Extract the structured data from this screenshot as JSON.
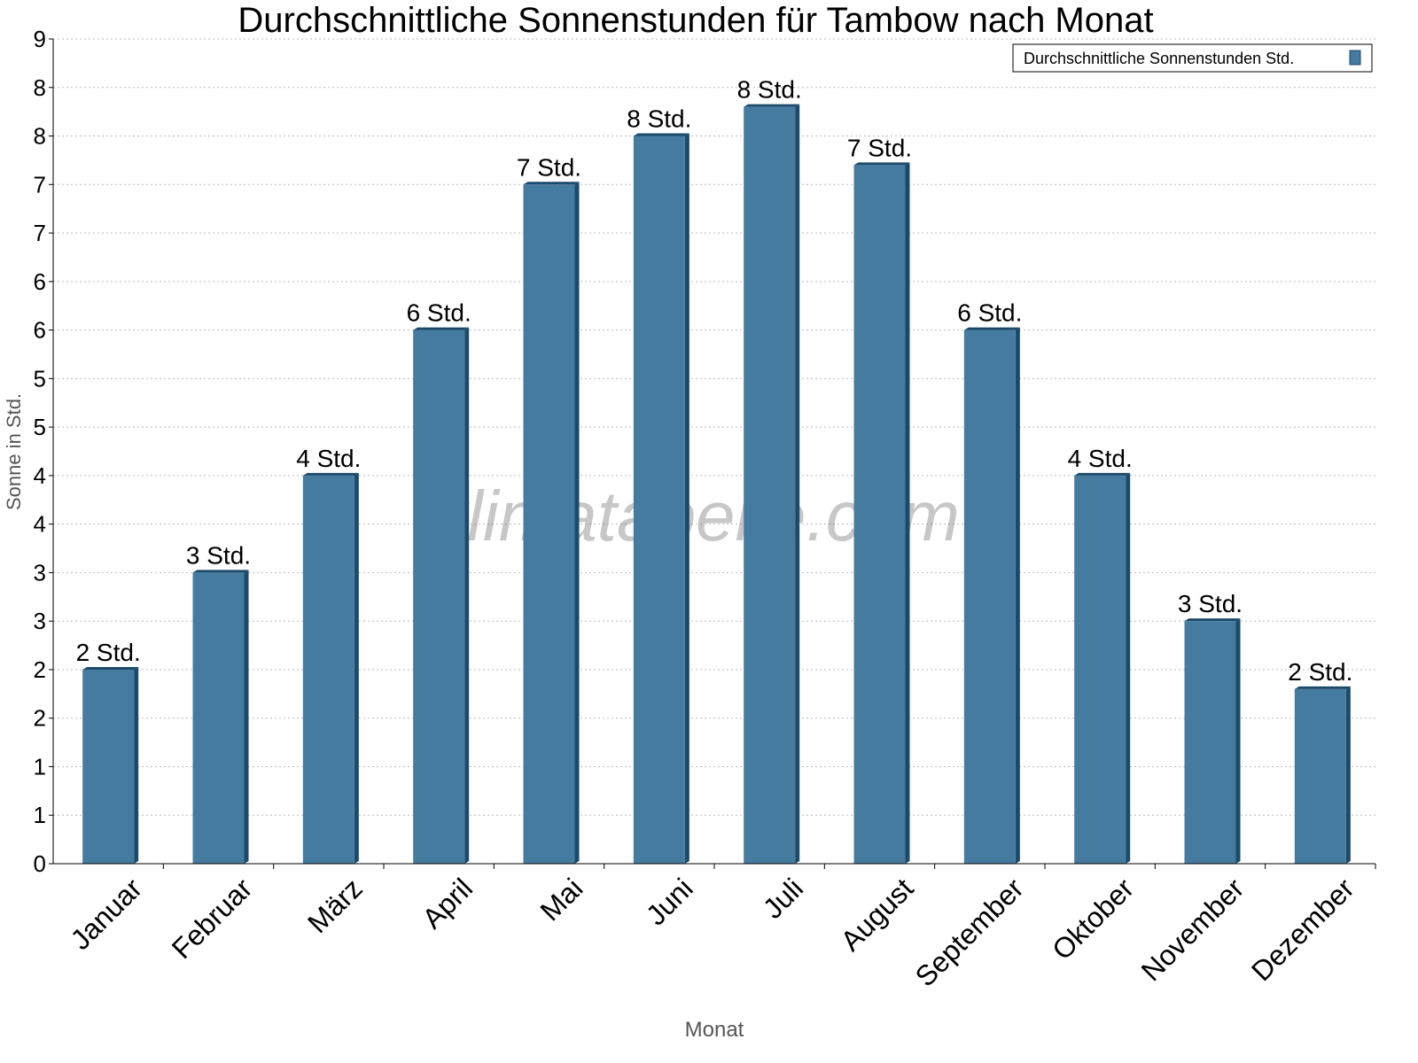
{
  "chart_data": {
    "type": "bar",
    "title": "Durchschnittliche Sonnenstunden für Tambow nach Monat",
    "xlabel": "Monat",
    "ylabel": "Sonne in Std.",
    "ylim": [
      0,
      8.5
    ],
    "ytick_step": 0.5,
    "ytick_labels": [
      "0",
      "1",
      "1",
      "2",
      "2",
      "3",
      "3",
      "4",
      "4",
      "5",
      "5",
      "6",
      "6",
      "7",
      "7",
      "8",
      "8",
      "9"
    ],
    "grid": true,
    "legend_position": "top-right",
    "categories": [
      "Januar",
      "Februar",
      "März",
      "April",
      "Mai",
      "Juni",
      "Juli",
      "August",
      "September",
      "Oktober",
      "November",
      "Dezember"
    ],
    "series": [
      {
        "name": "Durchschnittliche Sonnenstunden Std.",
        "values": [
          2.0,
          3.0,
          4.0,
          5.5,
          7.0,
          7.5,
          7.8,
          7.2,
          5.5,
          4.0,
          2.5,
          1.8
        ],
        "data_labels": [
          "2 Std.",
          "3 Std.",
          "4 Std.",
          "6 Std.",
          "7 Std.",
          "8 Std.",
          "8 Std.",
          "7 Std.",
          "6 Std.",
          "4 Std.",
          "3 Std.",
          "2 Std."
        ],
        "color": "#467ba0",
        "side_color": "#1b4a6b"
      }
    ],
    "watermark": "klimatabelle.com"
  }
}
